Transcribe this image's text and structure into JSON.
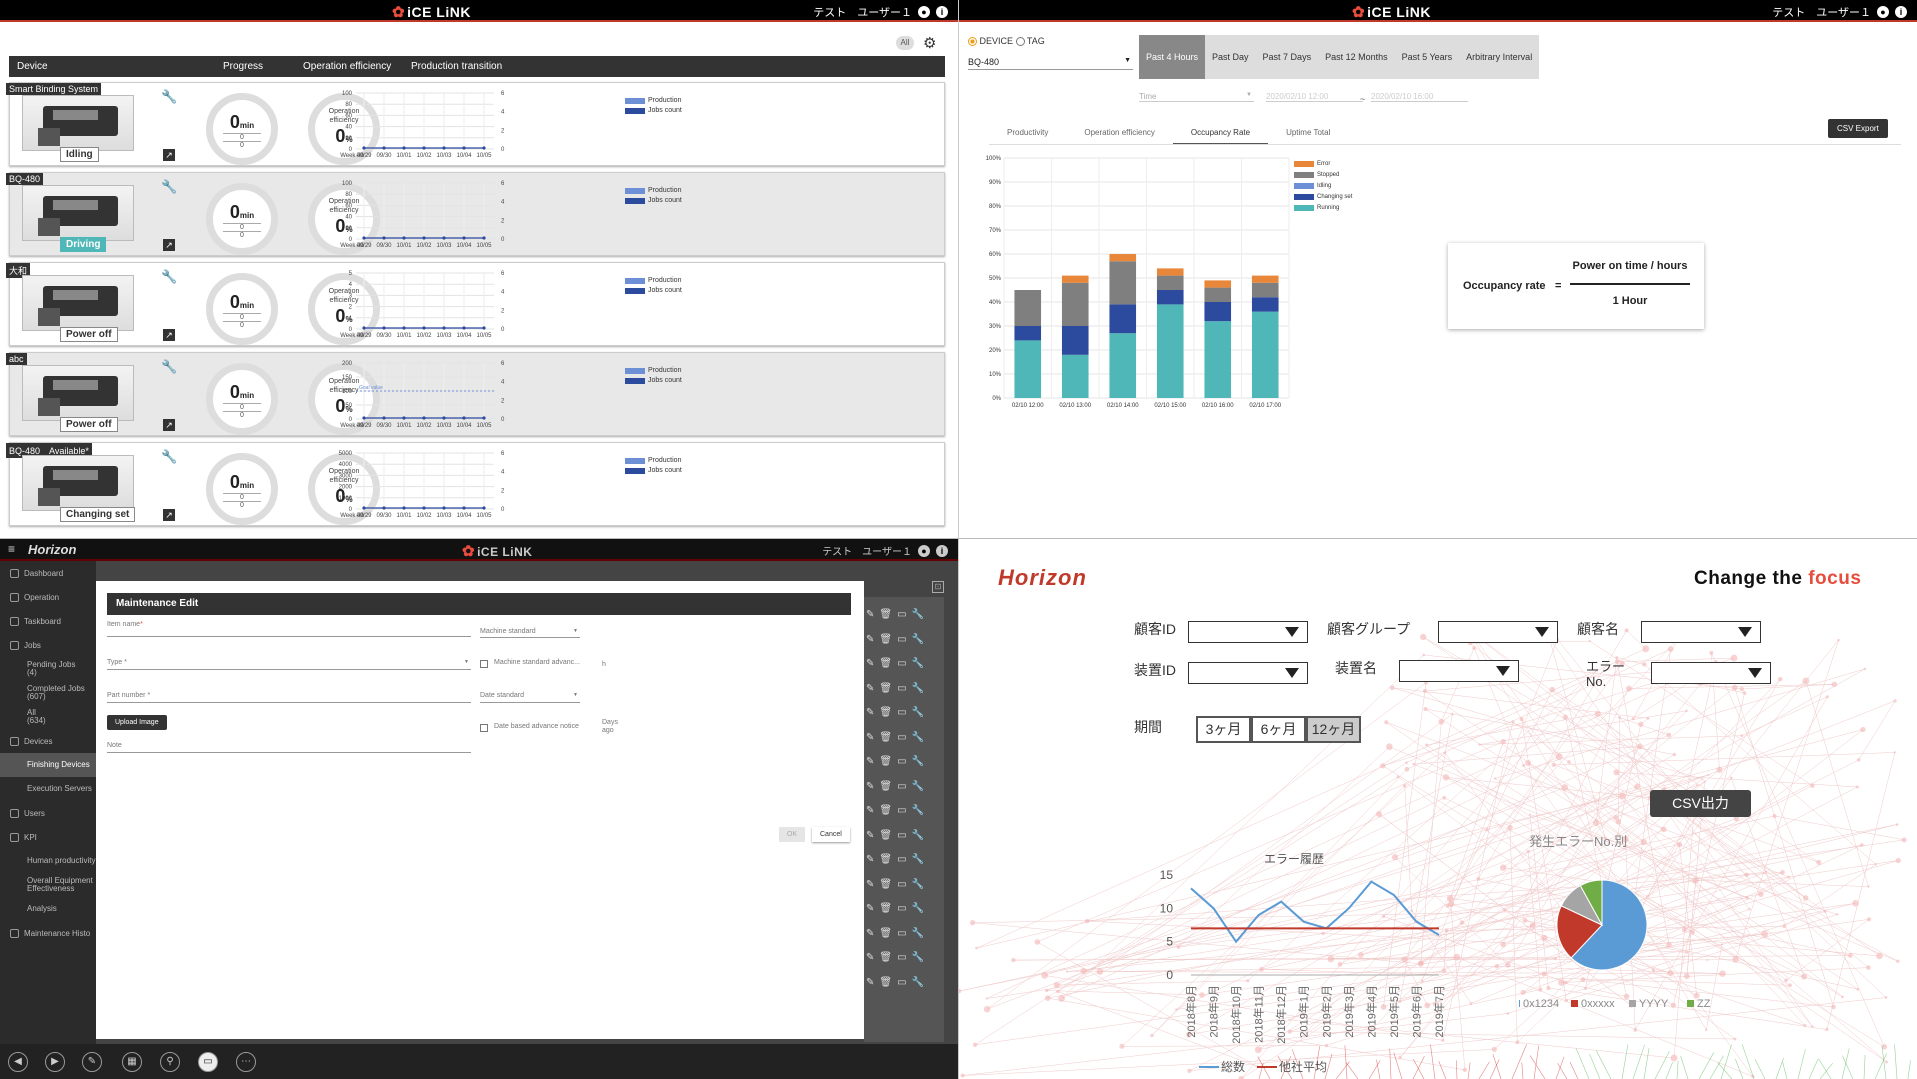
{
  "logo": "iCE LiNK",
  "user": "テスト　ユーザー１",
  "q1": {
    "all_label": "All",
    "headers": {
      "device": "Device",
      "progress": "Progress",
      "efficiency": "Operation efficiency",
      "transition": "Production transition"
    },
    "ring_value": "0",
    "ring_unit": "min",
    "ring_sub1": "0",
    "ring_sub2": "0",
    "eff_label": "Operation efficiency",
    "eff_value": "0",
    "eff_unit": "%",
    "legend_production": "Production",
    "legend_jobs": "Jobs count",
    "xticks": [
      "Week 40",
      "09/29",
      "09/30",
      "10/01",
      "10/02",
      "10/03",
      "10/04",
      "10/05"
    ],
    "goal_label": "Goal value",
    "rows": [
      {
        "name": "Smart Binding System",
        "status": "Idling",
        "yticks": [
          "100",
          "80",
          "60",
          "40",
          "20",
          "0"
        ],
        "rticks": [
          "6",
          "4",
          "2",
          "0"
        ]
      },
      {
        "name": "BQ-480",
        "status": "Driving",
        "yticks": [
          "100",
          "80",
          "60",
          "40",
          "20",
          "0"
        ],
        "rticks": [
          "6",
          "4",
          "2",
          "0"
        ]
      },
      {
        "name": "大和",
        "status": "Power off",
        "yticks": [
          "5",
          "4",
          "3",
          "2",
          "1",
          "0"
        ],
        "rticks": [
          "6",
          "4",
          "2",
          "0"
        ]
      },
      {
        "name": "abc",
        "status": "Power off",
        "yticks": [
          "200",
          "150",
          "100",
          "50",
          "0"
        ],
        "rticks": [
          "6",
          "4",
          "2",
          "0"
        ]
      },
      {
        "name": "BQ-480　Available*",
        "status": "Changing set",
        "yticks": [
          "5000",
          "4000",
          "3000",
          "2000",
          "1000",
          "0"
        ],
        "rticks": [
          "6",
          "4",
          "2",
          "0"
        ]
      }
    ]
  },
  "q2": {
    "device_label": "DEVICE",
    "tag_label": "TAG",
    "device_value": "BQ-480",
    "time_placeholder": "Time",
    "date_from": "2020/02/10 12:00",
    "date_sep": "~",
    "date_to": "2020/02/10 16:00",
    "period_tabs": [
      "Past 4 Hours",
      "Past Day",
      "Past 7 Days",
      "Past 12 Months",
      "Past 5 Years",
      "Arbitrary Interval"
    ],
    "sub_tabs": [
      "Productivity",
      "Operation efficiency",
      "Occupancy Rate",
      "Uptime Total"
    ],
    "csv": "CSV Export",
    "formula_left": "Occupancy rate",
    "formula_eq": "=",
    "formula_num": "Power on time / hours",
    "formula_den": "1 Hour",
    "colors": {
      "Error": "#e8873a",
      "Stopped": "#7f7f7f",
      "Idling": "#6c8fd6",
      "Changing set": "#2c4a9e",
      "Running": "#4fb7b7"
    }
  },
  "chart_data": {
    "type": "bar",
    "stacked": true,
    "categories": [
      "02/10 12:00",
      "02/10 13:00",
      "02/10 14:00",
      "02/10 15:00",
      "02/10 16:00",
      "02/10 17:00"
    ],
    "series": [
      {
        "name": "Running",
        "values": [
          24,
          18,
          27,
          39,
          32,
          36
        ]
      },
      {
        "name": "Changing set",
        "values": [
          6,
          12,
          12,
          6,
          8,
          6
        ]
      },
      {
        "name": "Idling",
        "values": [
          0,
          0,
          0,
          0,
          0,
          0
        ]
      },
      {
        "name": "Stopped",
        "values": [
          15,
          18,
          18,
          6,
          6,
          6
        ]
      },
      {
        "name": "Error",
        "values": [
          0,
          3,
          3,
          3,
          3,
          3
        ]
      }
    ],
    "yticks": [
      "100%",
      "90%",
      "80%",
      "70%",
      "60%",
      "50%",
      "40%",
      "30%",
      "20%",
      "10%",
      "0%"
    ],
    "ylim": [
      0,
      100
    ],
    "legend_order": [
      "Error",
      "Stopped",
      "Idling",
      "Changing set",
      "Running"
    ]
  },
  "q3": {
    "logo": "Horizon",
    "sidebar": [
      {
        "label": "Dashboard",
        "icon": "dashboard-icon"
      },
      {
        "label": "Operation",
        "icon": "operation-icon"
      },
      {
        "label": "Taskboard",
        "icon": "taskboard-icon"
      },
      {
        "label": "Jobs",
        "icon": "jobs-icon"
      },
      {
        "label": "Pending Jobs\n(4)",
        "sub": true
      },
      {
        "label": "Completed Jobs\n(607)",
        "sub": true
      },
      {
        "label": "All\n(634)",
        "sub": true
      },
      {
        "label": "Devices",
        "icon": "devices-icon"
      },
      {
        "label": "Finishing Devices",
        "sub": true,
        "on": true
      },
      {
        "label": "Execution Servers",
        "sub": true
      },
      {
        "label": "Users",
        "icon": "users-icon"
      },
      {
        "label": "KPI",
        "icon": "kpi-icon"
      },
      {
        "label": "Human productivity",
        "sub": true
      },
      {
        "label": "Overall Equipment Effectiveness",
        "sub": true
      },
      {
        "label": "Analysis",
        "sub": true
      },
      {
        "label": "Maintenance Histo",
        "icon": "maintenance-icon"
      }
    ],
    "modal": {
      "title": "Maintenance Edit",
      "item_name": "Item name",
      "machine_standard": "Machine standard",
      "type": "Type",
      "machine_adv": "Machine standard advanc...",
      "h": "h",
      "part_number": "Part number",
      "date_standard": "Date standard",
      "upload": "Upload Image",
      "date_adv": "Date based advance notice",
      "days_ago": "Days ago",
      "note": "Note",
      "ok": "OK",
      "cancel": "Cancel"
    }
  },
  "q4": {
    "logo": "Horizon",
    "tagline_a": "Change the ",
    "tagline_b": "focus",
    "labels": {
      "customer_id": "顧客ID",
      "customer_group": "顧客グループ",
      "customer_name": "顧客名",
      "device_id": "装置ID",
      "device_name": "装置名",
      "error_no": "エラー\nNo.",
      "period": "期間"
    },
    "periods": [
      "3ヶ月",
      "6ヶ月",
      "12ヶ月"
    ],
    "csv": "CSV出力",
    "line_title": "エラー履歴",
    "pie_title": "発生エラーNo.別",
    "line_legend": [
      "総数",
      "他社平均"
    ],
    "pie_legend": [
      "0x1234",
      "0xxxxx",
      "YYYY",
      "ZZ"
    ]
  },
  "line_chart_data": {
    "type": "line",
    "x": [
      "2018年8月",
      "2018年9月",
      "2018年10月",
      "2018年11月",
      "2018年12月",
      "2019年1月",
      "2019年2月",
      "2019年3月",
      "2019年4月",
      "2019年5月",
      "2019年6月",
      "2019年7月"
    ],
    "series": [
      {
        "name": "総数",
        "values": [
          13,
          10,
          5,
          9,
          11,
          8,
          7,
          10,
          14,
          12,
          8,
          6
        ],
        "color": "#5b9bd5"
      },
      {
        "name": "他社平均",
        "values": [
          7,
          7,
          7,
          7,
          7,
          7,
          7,
          7,
          7,
          7,
          7,
          7
        ],
        "color": "#c0392b"
      }
    ],
    "yticks": [
      "15",
      "10",
      "5",
      "0"
    ],
    "ylim": [
      0,
      15
    ]
  },
  "pie_chart_data": {
    "type": "pie",
    "slices": [
      {
        "name": "0x1234",
        "value": 62,
        "color": "#5b9bd5"
      },
      {
        "name": "0xxxxx",
        "value": 20,
        "color": "#c0392b"
      },
      {
        "name": "YYYY",
        "value": 10,
        "color": "#a5a5a5"
      },
      {
        "name": "ZZ",
        "value": 8,
        "color": "#70ad47"
      }
    ]
  }
}
